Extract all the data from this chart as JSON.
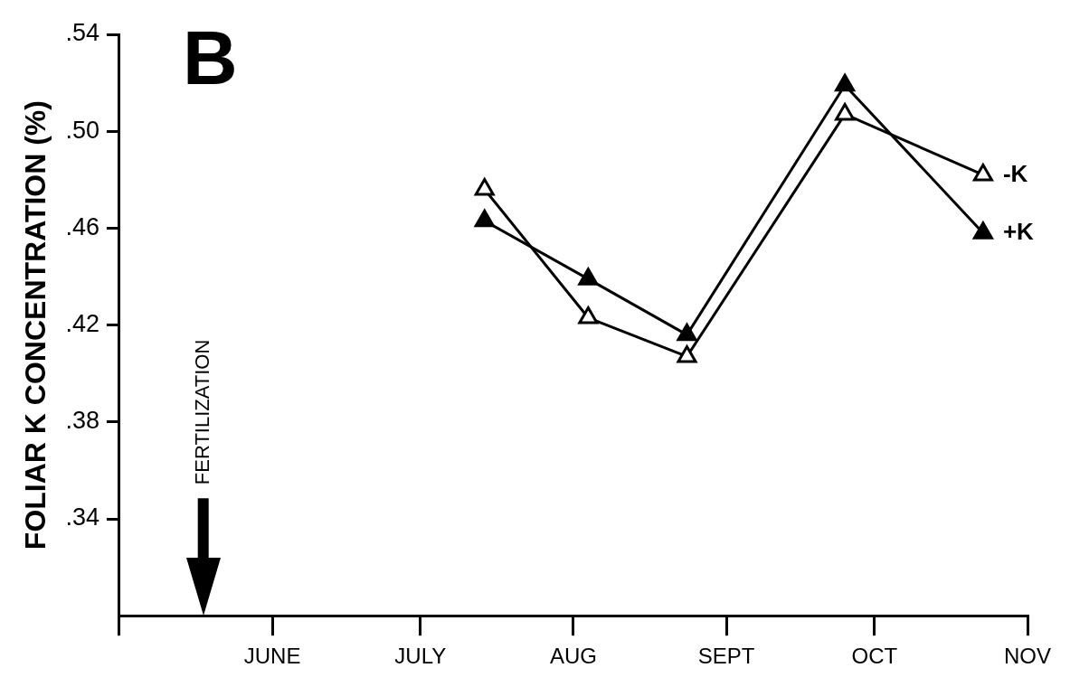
{
  "chart_data": {
    "type": "line",
    "title": "B",
    "ylabel": "FOLIAR K CONCENTRATION (%)",
    "x": [
      "--07-14",
      "--08-04",
      "--08-24",
      "--09-25",
      "--10-23"
    ],
    "series": [
      {
        "name": "-K",
        "color": "#000000",
        "values": [
          0.476,
          0.423,
          0.407,
          0.507,
          0.482
        ]
      },
      {
        "name": "+K",
        "color": "#000000",
        "values": [
          0.463,
          0.439,
          0.416,
          0.519,
          0.458
        ]
      }
    ],
    "xlim": [
      "--05-01",
      "--11-01"
    ],
    "xticks": [
      {
        "value": "--05-01",
        "label": null
      },
      {
        "value": "--06-01",
        "label": "JUNE"
      },
      {
        "value": "--07-01",
        "label": "JULY"
      },
      {
        "value": "--08-01",
        "label": "AUG"
      },
      {
        "value": "--09-01",
        "label": "SEPT"
      },
      {
        "value": "--10-01",
        "label": "OCT"
      },
      {
        "value": "--11-01",
        "label": "NOV"
      }
    ],
    "ylim": [
      0.3,
      0.54
    ],
    "yticks": [
      {
        "value": 0.34,
        "label": ".34"
      },
      {
        "value": 0.38,
        "label": ".38"
      },
      {
        "value": 0.42,
        "label": ".42"
      },
      {
        "value": 0.46,
        "label": ".46"
      },
      {
        "value": 0.5,
        "label": ".50"
      },
      {
        "value": 0.54,
        "label": ".54"
      }
    ],
    "ref_lines": [
      {
        "axis": "x",
        "value": "--05-18",
        "label": "FERTILIZATION"
      }
    ],
    "grid": false,
    "marker": "triangle",
    "line_style": "solid"
  }
}
